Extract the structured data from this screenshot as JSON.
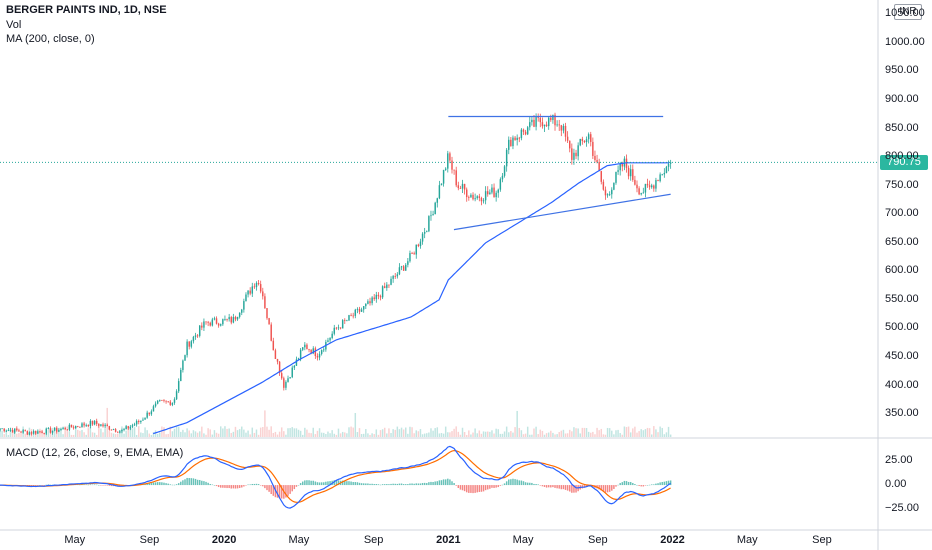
{
  "chart_data": {
    "type": "candlestick",
    "title": "BERGER PAINTS IND, 1D, NSE",
    "currency": "INR",
    "indicators": {
      "volume_label": "Vol",
      "ma_label": "MA (200, close, 0)",
      "macd_label": "MACD (12, 26, close, 9, EMA, EMA)"
    },
    "last_price": 790.75,
    "last_price_label": "790.75",
    "price_axis": {
      "range": [
        310,
        1075
      ],
      "ticks": [
        "1050.00",
        "1000.00",
        "950.00",
        "900.00",
        "850.00",
        "800.00",
        "750.00",
        "700.00",
        "650.00",
        "600.00",
        "550.00",
        "500.00",
        "450.00",
        "400.00",
        "350.00"
      ],
      "tick_values": [
        1050,
        1000,
        950,
        900,
        850,
        800,
        750,
        700,
        650,
        600,
        550,
        500,
        450,
        400,
        350
      ]
    },
    "macd_axis": {
      "range": [
        -40,
        42
      ],
      "ticks": [
        "25.00",
        "0.00",
        "−25.00"
      ],
      "tick_values": [
        25,
        0,
        -25
      ]
    },
    "time_axis": {
      "ticks": [
        {
          "label": "May",
          "major": false
        },
        {
          "label": "Sep",
          "major": false
        },
        {
          "label": "2020",
          "major": true
        },
        {
          "label": "May",
          "major": false
        },
        {
          "label": "Sep",
          "major": false
        },
        {
          "label": "2021",
          "major": true
        },
        {
          "label": "May",
          "major": false
        },
        {
          "label": "Sep",
          "major": false
        },
        {
          "label": "2022",
          "major": true
        },
        {
          "label": "May",
          "major": false
        },
        {
          "label": "Sep",
          "major": false
        }
      ],
      "tick_month_index": [
        4,
        8,
        12,
        16,
        20,
        24,
        28,
        32,
        36,
        40,
        44
      ]
    },
    "close_anchors": {
      "month_index": [
        0,
        1.5,
        3,
        5,
        6.5,
        7.5,
        8.5,
        9.3,
        10,
        11,
        12.5,
        13.7,
        14,
        14.6,
        15.2,
        16.3,
        17,
        18,
        19,
        20,
        21,
        22,
        23,
        24,
        24.5,
        25.4,
        26.6,
        27.3,
        28.3,
        29,
        30,
        30.6,
        31.5,
        32.4,
        33.4,
        34.3,
        34.8,
        35.2,
        35.9
      ],
      "close": [
        325,
        318,
        322,
        335,
        320,
        338,
        370,
        372,
        470,
        510,
        515,
        585,
        570,
        470,
        400,
        470,
        455,
        500,
        525,
        548,
        585,
        625,
        690,
        800,
        750,
        730,
        740,
        830,
        850,
        865,
        860,
        800,
        840,
        730,
        790,
        740,
        745,
        765,
        790.75
      ]
    },
    "ma200_anchors": {
      "month_index": [
        8.2,
        10,
        12,
        14,
        16,
        18,
        20,
        22,
        23.5,
        24,
        26,
        28,
        29.5,
        31,
        32.5,
        33.5,
        35.9
      ],
      "value": [
        316,
        335,
        370,
        405,
        445,
        480,
        500,
        520,
        550,
        585,
        650,
        690,
        720,
        755,
        785,
        790,
        790
      ]
    },
    "trendlines": [
      {
        "name": "resistance",
        "from": [
          24,
          871
        ],
        "to": [
          35.5,
          871
        ]
      },
      {
        "name": "support",
        "from": [
          24.3,
          673
        ],
        "to": [
          35.9,
          735
        ]
      }
    ],
    "colors": {
      "up": "#26a69a",
      "down": "#ef5350",
      "ma": "#2962ff",
      "macd_line": "#2962ff",
      "signal_line": "#ff6d00",
      "trendline": "#3f72e5",
      "last_price": "#26a69a"
    },
    "total_months": 47
  }
}
